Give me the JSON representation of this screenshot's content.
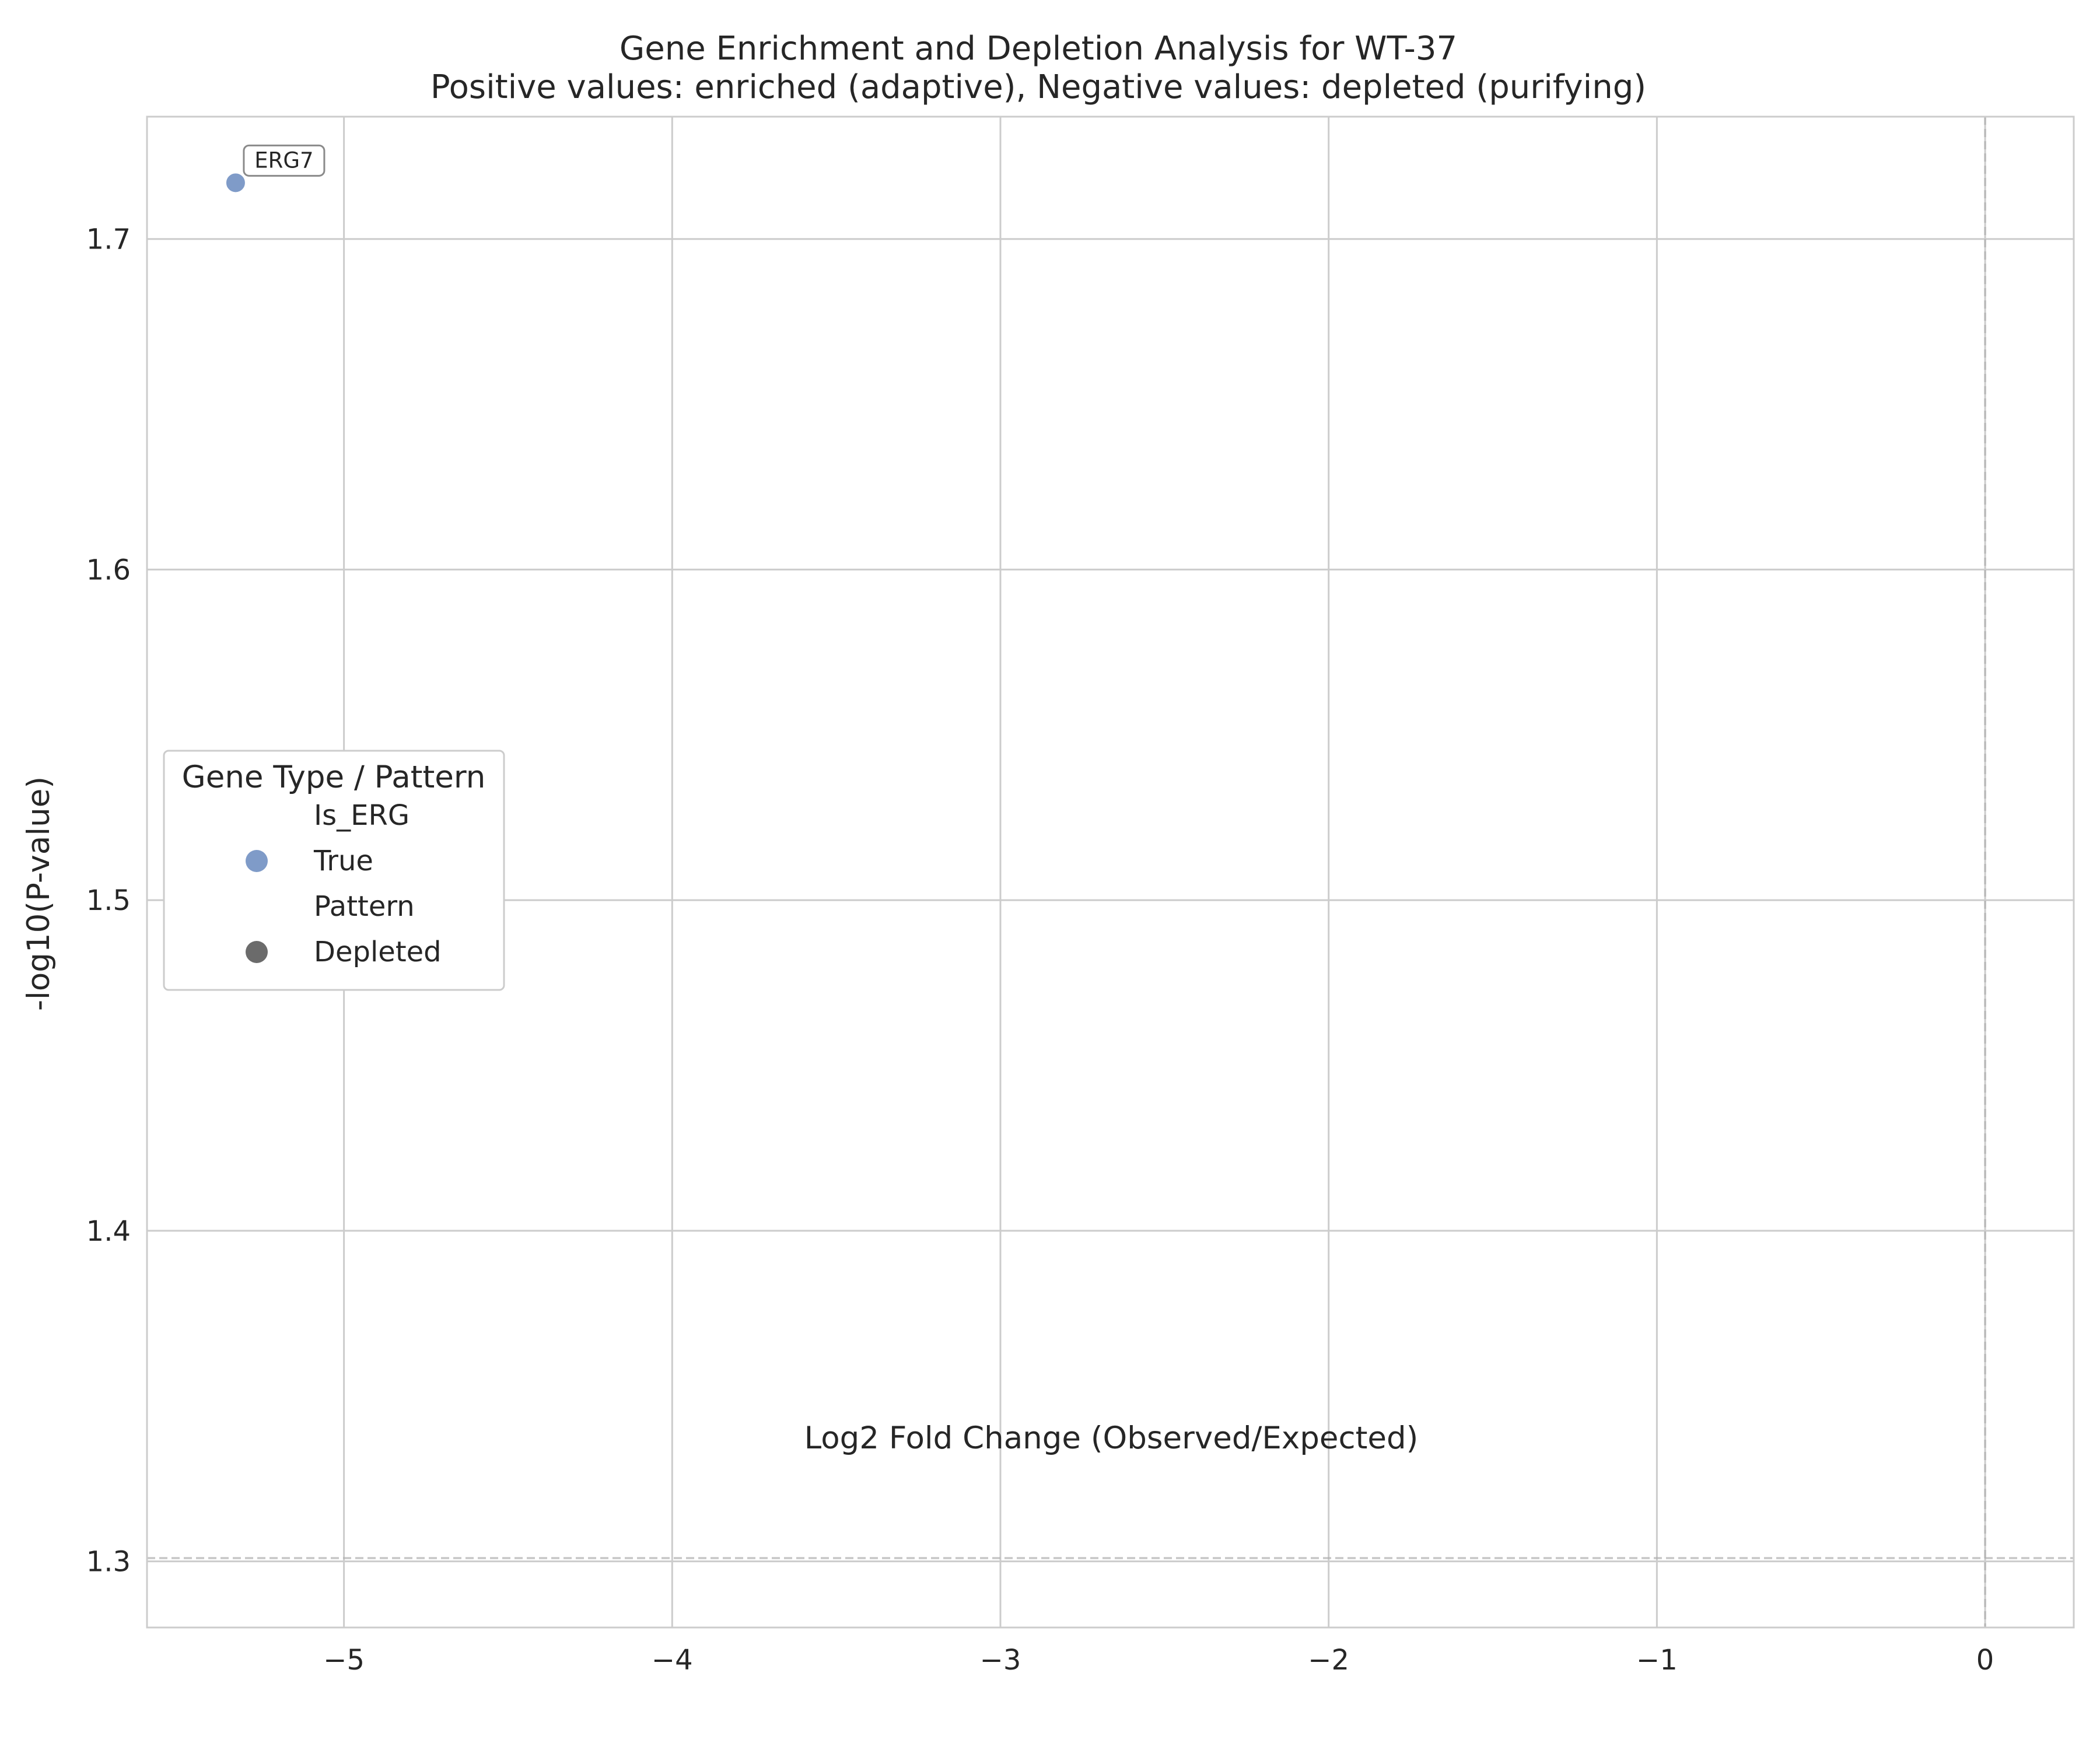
{
  "chart_data": {
    "type": "scatter",
    "title": "Gene Enrichment and Depletion Analysis for WT-37",
    "subtitle": "Positive values: enriched (adaptive), Negative values: depleted (purifying)",
    "xlabel": "Log2 Fold Change (Observed/Expected)",
    "ylabel": "-log10(P-value)",
    "xlim": [
      -5.6,
      0.27
    ],
    "ylim": [
      1.28,
      1.737
    ],
    "x_ticks": [
      -5,
      -4,
      -3,
      -2,
      -1,
      0
    ],
    "x_tick_labels": [
      "−5",
      "−4",
      "−3",
      "−2",
      "−1",
      "0"
    ],
    "y_ticks": [
      1.3,
      1.4,
      1.5,
      1.6,
      1.7
    ],
    "y_tick_labels": [
      "1.3",
      "1.4",
      "1.5",
      "1.6",
      "1.7"
    ],
    "grid": true,
    "reference_lines": {
      "x": 0,
      "y": 1.301
    },
    "points": [
      {
        "x": -5.33,
        "y": 1.717,
        "label": "ERG7",
        "is_erg": "True",
        "pattern": "Depleted",
        "color": "#7f9bc8"
      }
    ],
    "legend": {
      "title": "Gene Type / Pattern",
      "placement": "center-left",
      "entries": [
        {
          "label": "Is_ERG",
          "marker": false,
          "color": ""
        },
        {
          "label": "True",
          "marker": true,
          "color": "#7f9bc8"
        },
        {
          "label": "Pattern",
          "marker": false,
          "color": ""
        },
        {
          "label": "Depleted",
          "marker": true,
          "color": "#6b6b6b"
        }
      ]
    },
    "colors": {
      "grid": "#cccccc",
      "axes_edge": "#cccccc",
      "reference": "#b0b0b0"
    }
  }
}
